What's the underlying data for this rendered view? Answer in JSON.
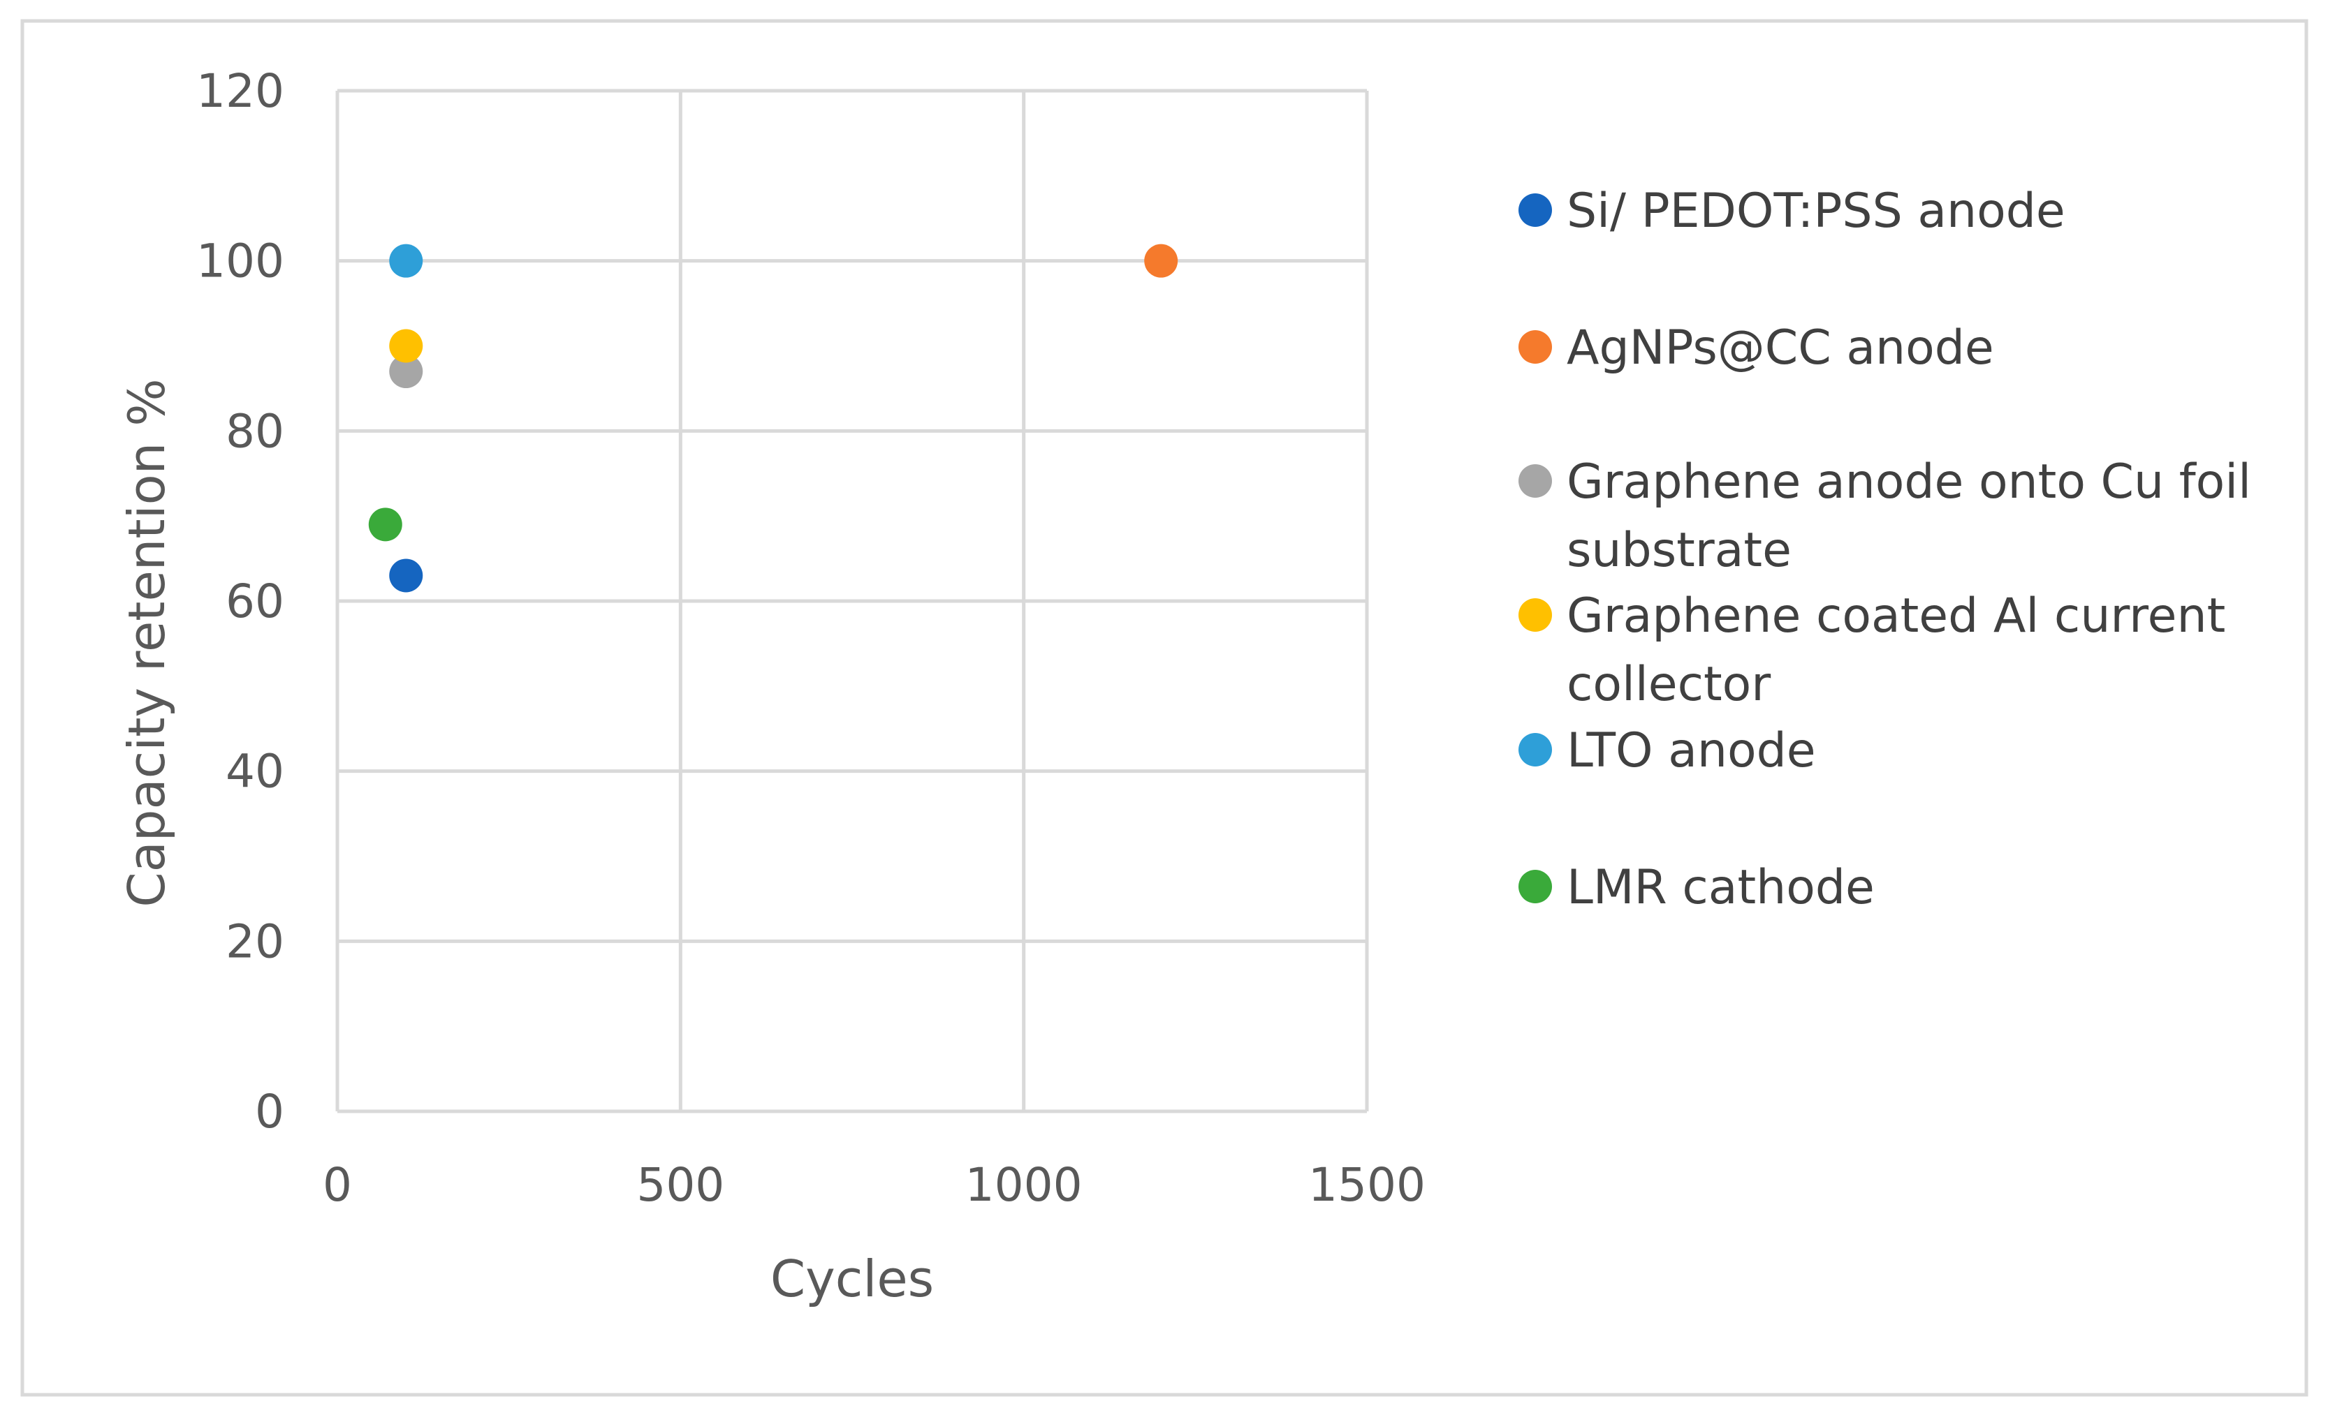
{
  "chart_data": {
    "type": "scatter",
    "title": "",
    "xlabel": "Cycles",
    "ylabel": "Capacity retention %",
    "xlim": [
      0,
      1500
    ],
    "ylim": [
      0,
      120
    ],
    "xticks": [
      "0",
      "500",
      "1000",
      "1500"
    ],
    "yticks": [
      "0",
      "20",
      "40",
      "60",
      "80",
      "100",
      "120"
    ],
    "grid": true,
    "legend_position": "right",
    "series": [
      {
        "name": "Si/ PEDOT:PSS anode",
        "color": "#1565C0",
        "points": [
          {
            "x": 100,
            "y": 63
          }
        ]
      },
      {
        "name": "AgNPs@CC anode",
        "color": "#F57A2C",
        "points": [
          {
            "x": 1200,
            "y": 100
          }
        ]
      },
      {
        "name": "Graphene anode onto Cu foil substrate",
        "color": "#A6A6A6",
        "points": [
          {
            "x": 100,
            "y": 87
          }
        ]
      },
      {
        "name": "Graphene coated Al current collector",
        "color": "#FFC000",
        "points": [
          {
            "x": 100,
            "y": 90
          }
        ]
      },
      {
        "name": "LTO anode",
        "color": "#2E9FD8",
        "points": [
          {
            "x": 100,
            "y": 100
          }
        ]
      },
      {
        "name": "LMR cathode",
        "color": "#3AAA3A",
        "points": [
          {
            "x": 70,
            "y": 69
          }
        ]
      }
    ]
  }
}
